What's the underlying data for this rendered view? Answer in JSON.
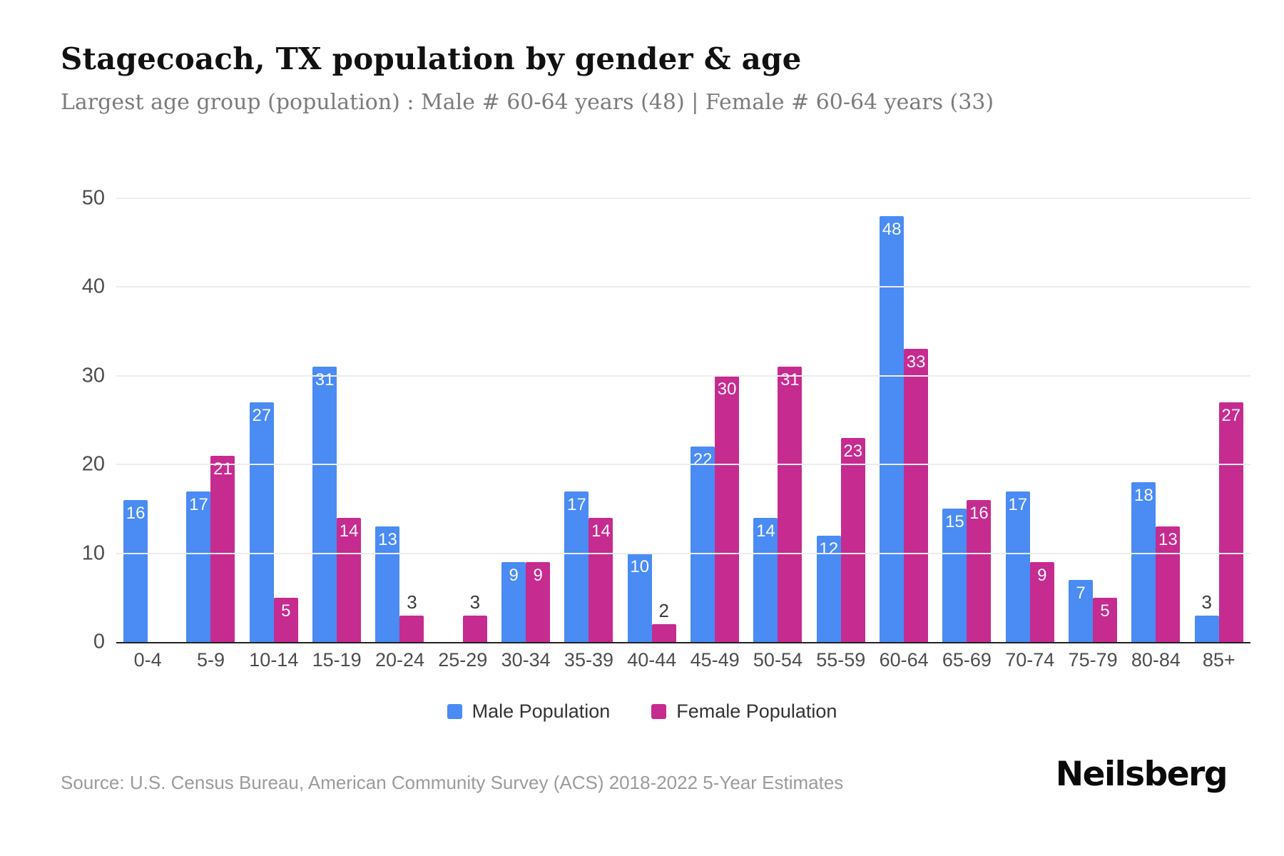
{
  "header": {
    "title": "Stagecoach, TX population by gender & age",
    "subtitle": "Largest age group (population) : Male # 60-64 years (48) | Female # 60-64 years (33)"
  },
  "chart_data": {
    "type": "bar",
    "categories": [
      "0-4",
      "5-9",
      "10-14",
      "15-19",
      "20-24",
      "25-29",
      "30-34",
      "35-39",
      "40-44",
      "45-49",
      "50-54",
      "55-59",
      "60-64",
      "65-69",
      "70-74",
      "75-79",
      "80-84",
      "85+"
    ],
    "series": [
      {
        "name": "Male Population",
        "color": "#4a8bf4",
        "values": [
          16,
          17,
          27,
          31,
          13,
          0,
          9,
          17,
          10,
          22,
          14,
          12,
          48,
          15,
          17,
          7,
          18,
          3
        ]
      },
      {
        "name": "Female Population",
        "color": "#c62b90",
        "values": [
          0,
          21,
          5,
          14,
          3,
          3,
          9,
          14,
          2,
          30,
          31,
          23,
          33,
          16,
          9,
          5,
          13,
          27
        ]
      }
    ],
    "title": "Stagecoach, TX population by gender & age",
    "xlabel": "",
    "ylabel": "",
    "ylim": [
      0,
      50
    ],
    "yticks": [
      0,
      10,
      20,
      30,
      40,
      50
    ],
    "grid": "horizontal",
    "legend_position": "bottom"
  },
  "legend": {
    "items": [
      {
        "label": "Male Population",
        "color": "#4a8bf4"
      },
      {
        "label": "Female Population",
        "color": "#c62b90"
      }
    ]
  },
  "footer": {
    "source": "Source: U.S. Census Bureau, American Community Survey (ACS) 2018-2022 5-Year Estimates",
    "brand": "Neilsberg"
  },
  "colors": {
    "male": "#4a8bf4",
    "female": "#c62b90",
    "gridline": "#ededed",
    "axis_line": "#222222",
    "tick_text": "#4d4d4d",
    "value_label_inside": "#ffffff",
    "value_label_outside": "#3b3b3b"
  }
}
